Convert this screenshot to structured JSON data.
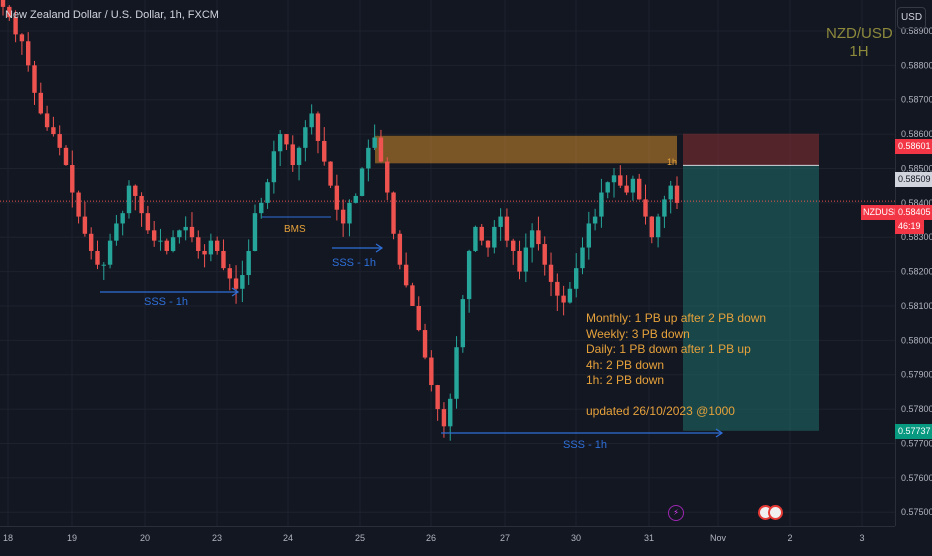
{
  "header": {
    "title": "New Zealand Dollar / U.S. Dollar, 1h, FXCM"
  },
  "symbol_label": {
    "line1": "NZD/USD",
    "line2": "1H"
  },
  "currency_button": "USD",
  "colors": {
    "background": "#131722",
    "grid": "#1e222d",
    "up": "#26a69a",
    "down": "#ef5350",
    "supply_zone": "#d08a2b",
    "stop_zone": "#8b2f33",
    "target_zone": "#1f6f6a",
    "annotation_blue": "#2e6fd8",
    "annotation_orange": "#e6a13b"
  },
  "price_tags": {
    "stop": "0.58601",
    "entry": "0.58509",
    "current_symbol": "NZDUSD",
    "current_price": "0.58405",
    "countdown": "46:19",
    "target": "0.57737"
  },
  "annotations": {
    "sss_1": "SSS - 1h",
    "sss_2": "SSS - 1h",
    "sss_3": "SSS - 1h",
    "bms": "BMS",
    "zone_label": "1h"
  },
  "notes": {
    "monthly": "Monthly: 1 PB up after 2 PB down",
    "weekly": "Weekly: 3 PB down",
    "daily": "Daily: 1 PB down after 1 PB up",
    "h4": "4h: 2 PB down",
    "h1": "1h: 2 PB down",
    "updated": "updated 26/10/2023 @1000"
  },
  "chart_data": {
    "type": "candlestick",
    "symbol": "NZDUSD",
    "timeframe": "1h",
    "ylim": [
      0.5746,
      0.5899
    ],
    "y_ticks": [
      "0.58900",
      "0.58800",
      "0.58700",
      "0.58600",
      "0.58500",
      "0.58400",
      "0.58300",
      "0.58200",
      "0.58100",
      "0.58000",
      "0.57900",
      "0.57800",
      "0.57700",
      "0.57600",
      "0.57500"
    ],
    "x_ticks": [
      "18",
      "19",
      "20",
      "23",
      "24",
      "25",
      "26",
      "27",
      "30",
      "31",
      "Nov",
      "2",
      "3"
    ],
    "close_path": [
      0.5897,
      0.5894,
      0.5889,
      0.5887,
      0.588,
      0.5872,
      0.5866,
      0.5862,
      0.586,
      0.5856,
      0.5851,
      0.5843,
      0.5836,
      0.5831,
      0.5826,
      0.5822,
      0.5822,
      0.5829,
      0.5834,
      0.5837,
      0.5845,
      0.5842,
      0.5837,
      0.5832,
      0.5829,
      0.5829,
      0.5826,
      0.583,
      0.5832,
      0.5833,
      0.583,
      0.5826,
      0.5825,
      0.5829,
      0.5826,
      0.5821,
      0.5818,
      0.5815,
      0.5819,
      0.5826,
      0.5837,
      0.584,
      0.5846,
      0.5855,
      0.586,
      0.5857,
      0.5851,
      0.5856,
      0.5862,
      0.5866,
      0.5858,
      0.5852,
      0.5845,
      0.5838,
      0.5834,
      0.584,
      0.5842,
      0.585,
      0.5856,
      0.5859,
      0.5852,
      0.5843,
      0.5831,
      0.5822,
      0.5816,
      0.581,
      0.5803,
      0.5795,
      0.5787,
      0.578,
      0.5775,
      0.5783,
      0.5798,
      0.5812,
      0.5826,
      0.5833,
      0.5829,
      0.5827,
      0.5833,
      0.5836,
      0.5829,
      0.5826,
      0.582,
      0.5827,
      0.5832,
      0.5828,
      0.5822,
      0.5817,
      0.5813,
      0.5811,
      0.5815,
      0.5821,
      0.5827,
      0.5834,
      0.5836,
      0.5843,
      0.5846,
      0.5848,
      0.5845,
      0.5843,
      0.5847,
      0.5841,
      0.5836,
      0.583,
      0.5836,
      0.5841,
      0.5845,
      0.584
    ],
    "levels": {
      "stop": 0.58601,
      "entry": 0.58509,
      "current": 0.58405,
      "target": 0.57737
    }
  }
}
